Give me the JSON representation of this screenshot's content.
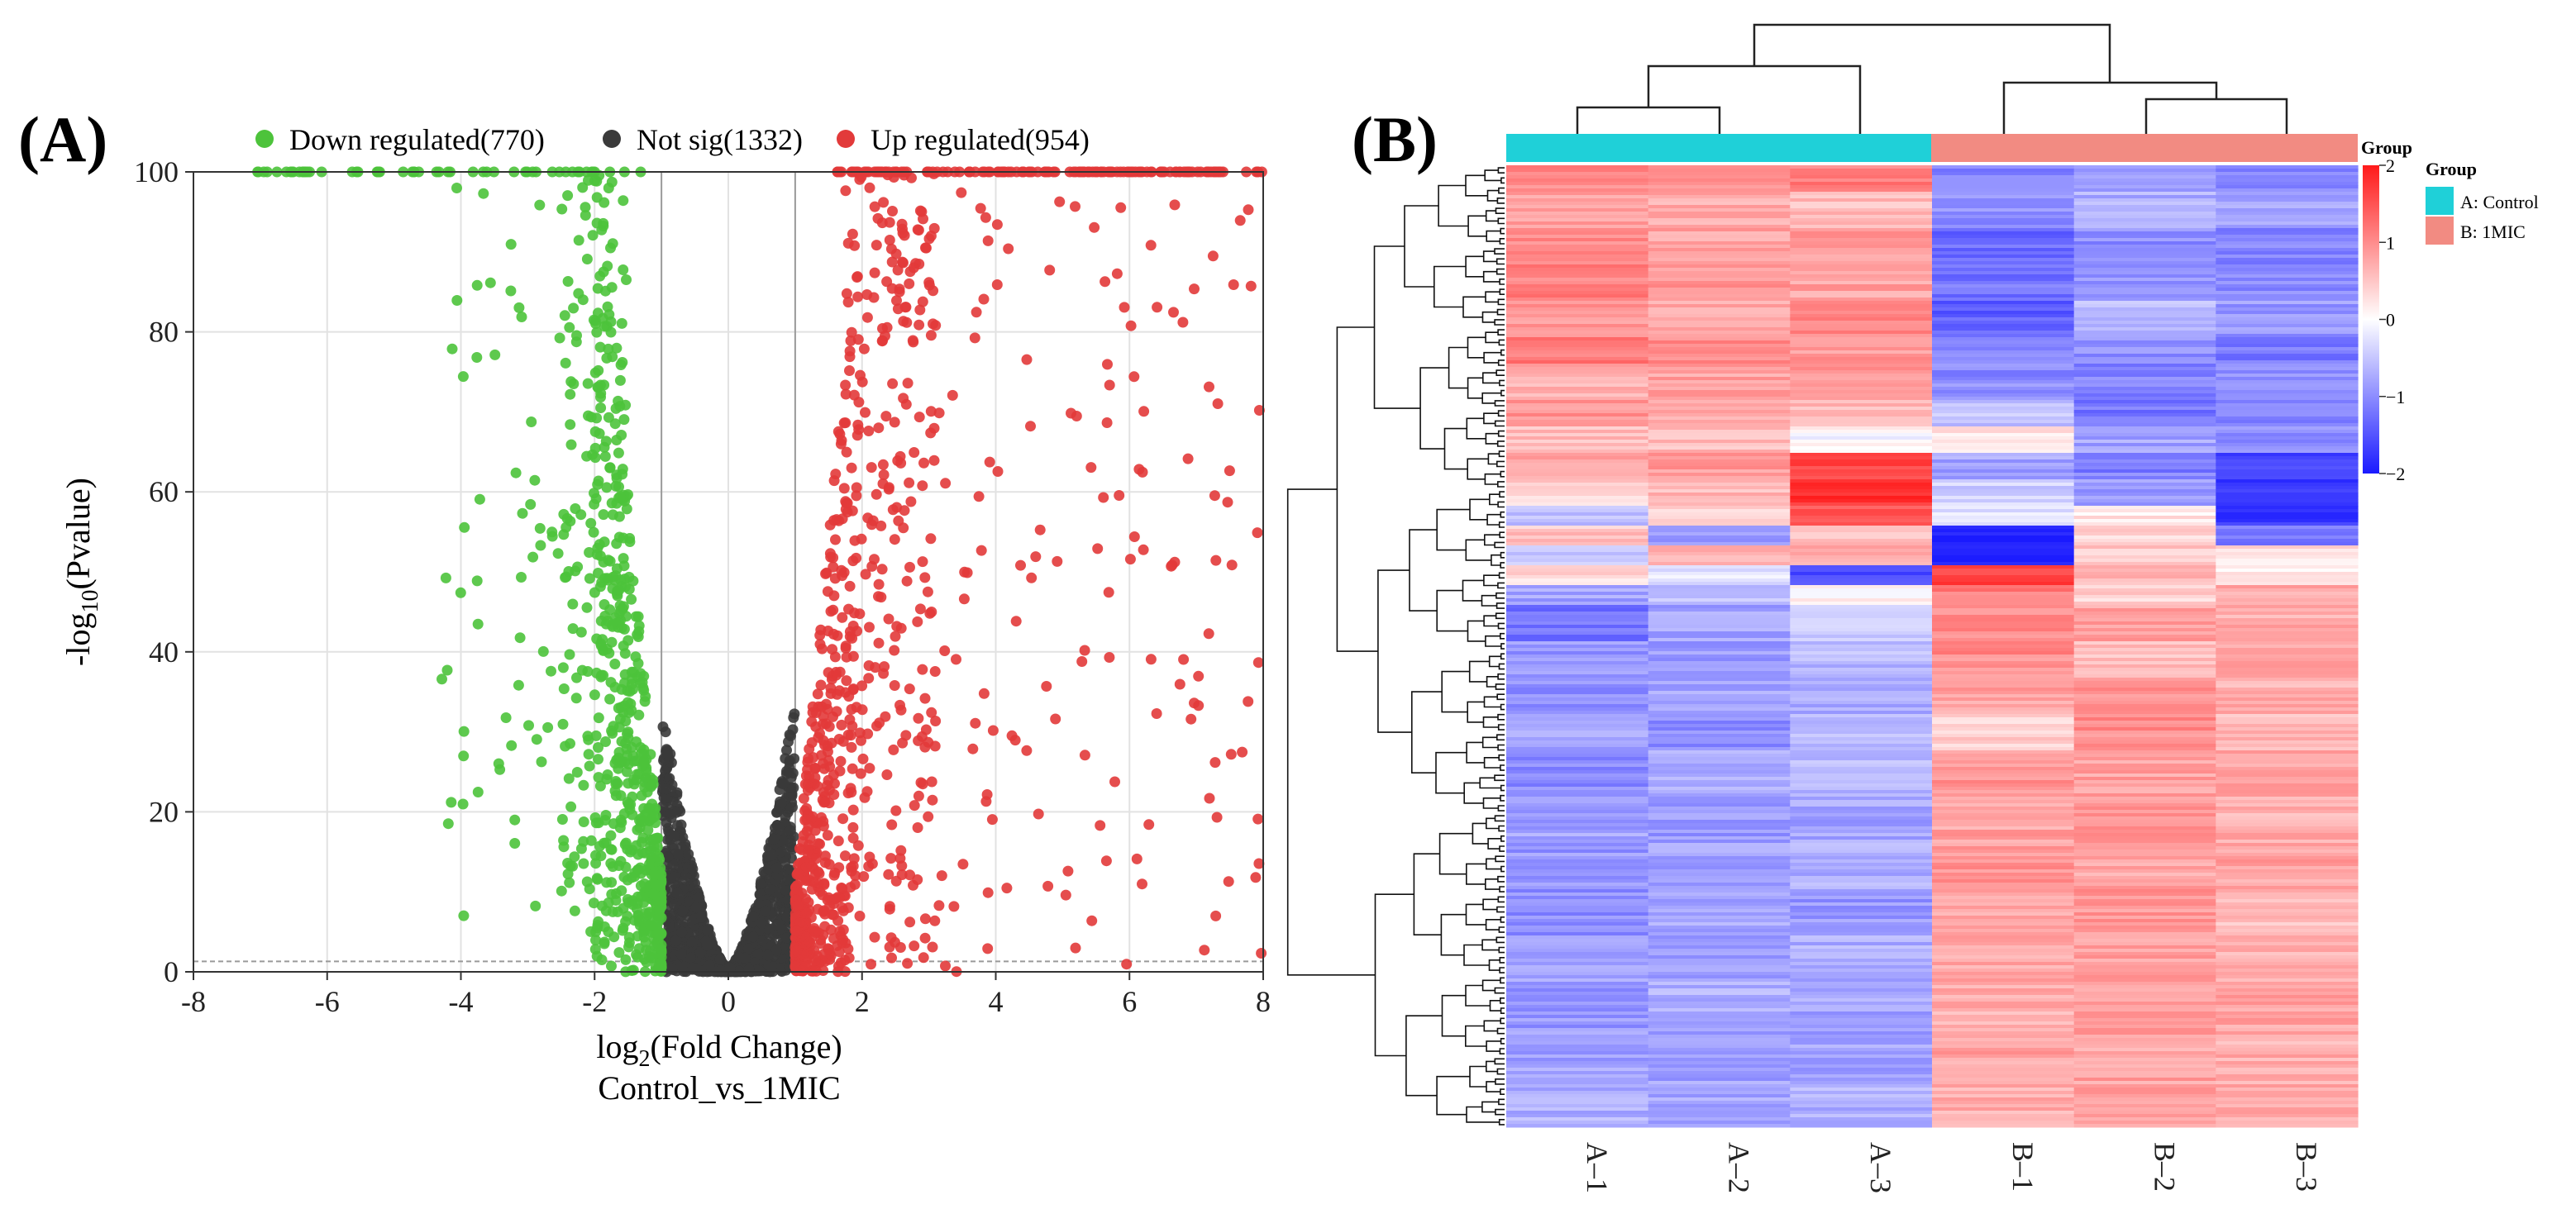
{
  "panel_a_label": "(A)",
  "panel_b_label": "(B)",
  "chart_data": [
    {
      "type": "scatter",
      "subtype": "volcano",
      "title": "",
      "xlabel_prefix": "log",
      "xlabel_sub": "2",
      "xlabel_suffix": "(Fold Change)",
      "xlabel2": "Control_vs_1MIC",
      "ylabel_prefix": "-log",
      "ylabel_sub": "10",
      "ylabel_suffix": "(Pvalue)",
      "xlim": [
        -8,
        8
      ],
      "ylim": [
        0,
        100
      ],
      "xticks": [
        "-8",
        "-6",
        "-4",
        "-2",
        "0",
        "2",
        "4",
        "6",
        "8"
      ],
      "yticks": [
        "0",
        "20",
        "40",
        "60",
        "80",
        "100"
      ],
      "grid": true,
      "fc_threshold_lines": [
        -1,
        1
      ],
      "p_threshold_line": 1.3,
      "legend_position": "top",
      "series": [
        {
          "name": "Down regulated(770)",
          "count": 770,
          "color": "#4dc33b",
          "x_range": [
            -7.2,
            -1.0
          ],
          "y_range": [
            0,
            100
          ]
        },
        {
          "name": "Not sig(1332)",
          "count": 1332,
          "color": "#3a3a3a",
          "x_range": [
            -1.0,
            1.0
          ],
          "y_range": [
            0,
            35
          ]
        },
        {
          "name": "Up regulated(954)",
          "count": 954,
          "color": "#e23a3a",
          "x_range": [
            1.0,
            8.0
          ],
          "y_range": [
            0,
            100
          ]
        }
      ]
    },
    {
      "type": "heatmap",
      "title": "",
      "columns": [
        "A–1",
        "A–2",
        "A–3",
        "B–1",
        "B–2",
        "B–3"
      ],
      "column_groups": [
        "A: Control",
        "A: Control",
        "A: Control",
        "B: 1MIC",
        "B: 1MIC",
        "B: 1MIC"
      ],
      "group_annotation_title": "Group",
      "groups": [
        {
          "name": "A: Control",
          "color": "#1fd0d8"
        },
        {
          "name": "B: 1MIC",
          "color": "#f28b82"
        }
      ],
      "color_scale": {
        "min": -2,
        "max": 2,
        "ticks": [
          "2",
          "1",
          "0",
          "−1",
          "−2"
        ],
        "low_color": "#1a1aff",
        "mid_color": "#ffffff",
        "high_color": "#ff1a1a"
      },
      "row_profile_segments": [
        {
          "span": 0.03,
          "values": [
            1.0,
            0.9,
            1.1,
            -1.1,
            -0.8,
            -1.0
          ]
        },
        {
          "span": 0.04,
          "values": [
            0.8,
            0.7,
            0.6,
            -1.0,
            -0.7,
            -0.8
          ]
        },
        {
          "span": 0.04,
          "values": [
            1.0,
            0.8,
            0.9,
            -1.3,
            -1.0,
            -1.1
          ]
        },
        {
          "span": 0.04,
          "values": [
            1.1,
            0.9,
            0.8,
            -1.2,
            -0.9,
            -1.0
          ]
        },
        {
          "span": 0.04,
          "values": [
            0.9,
            0.8,
            1.0,
            -1.4,
            -0.6,
            -0.9
          ]
        },
        {
          "span": 0.03,
          "values": [
            1.2,
            1.0,
            0.9,
            -1.1,
            -1.0,
            -1.2
          ]
        },
        {
          "span": 0.04,
          "values": [
            0.7,
            0.8,
            0.9,
            -1.0,
            -1.1,
            -0.9
          ]
        },
        {
          "span": 0.03,
          "values": [
            0.9,
            0.7,
            0.6,
            -0.5,
            -1.2,
            -1.1
          ]
        },
        {
          "span": 0.03,
          "values": [
            0.6,
            0.6,
            0.0,
            0.2,
            -0.8,
            -1.0
          ]
        },
        {
          "span": 0.03,
          "values": [
            0.8,
            0.9,
            1.6,
            -0.8,
            -1.1,
            -1.6
          ]
        },
        {
          "span": 0.03,
          "values": [
            0.4,
            0.6,
            1.8,
            -0.4,
            -0.9,
            -1.8
          ]
        },
        {
          "span": 0.02,
          "values": [
            -0.6,
            0.3,
            1.4,
            -0.3,
            0.2,
            -1.7
          ]
        },
        {
          "span": 0.02,
          "values": [
            0.5,
            -0.8,
            0.6,
            -1.9,
            0.4,
            -1.2
          ]
        },
        {
          "span": 0.02,
          "values": [
            -0.4,
            0.6,
            0.8,
            -2.0,
            0.5,
            0.3
          ]
        },
        {
          "span": 0.02,
          "values": [
            0.3,
            -0.2,
            -1.6,
            1.6,
            0.6,
            0.2
          ]
        },
        {
          "span": 0.02,
          "values": [
            -0.8,
            -0.6,
            0.1,
            1.1,
            0.4,
            0.7
          ]
        },
        {
          "span": 0.04,
          "values": [
            -1.2,
            -0.8,
            -0.4,
            1.0,
            0.8,
            0.7
          ]
        },
        {
          "span": 0.04,
          "values": [
            -0.9,
            -0.9,
            -0.6,
            1.0,
            0.6,
            0.8
          ]
        },
        {
          "span": 0.04,
          "values": [
            -1.0,
            -0.8,
            -0.7,
            0.8,
            0.9,
            0.7
          ]
        },
        {
          "span": 0.04,
          "values": [
            -0.8,
            -1.0,
            -0.5,
            0.4,
            1.0,
            0.6
          ]
        },
        {
          "span": 0.05,
          "values": [
            -1.0,
            -0.7,
            -0.6,
            0.9,
            0.8,
            0.8
          ]
        },
        {
          "span": 0.05,
          "values": [
            -0.8,
            -0.9,
            -0.8,
            0.8,
            0.9,
            0.7
          ]
        },
        {
          "span": 0.05,
          "values": [
            -0.9,
            -0.8,
            -0.7,
            0.9,
            0.8,
            0.8
          ]
        },
        {
          "span": 0.05,
          "values": [
            -1.0,
            -0.8,
            -0.9,
            0.7,
            0.9,
            0.6
          ]
        },
        {
          "span": 0.05,
          "values": [
            -0.8,
            -0.9,
            -0.7,
            0.8,
            0.8,
            0.7
          ]
        },
        {
          "span": 0.05,
          "values": [
            -0.9,
            -0.7,
            -0.8,
            0.7,
            0.9,
            0.8
          ]
        },
        {
          "span": 0.05,
          "values": [
            -0.8,
            -0.8,
            -0.8,
            0.8,
            0.8,
            0.7
          ]
        },
        {
          "span": 0.04,
          "values": [
            -0.7,
            -0.8,
            -0.7,
            0.7,
            0.8,
            0.7
          ]
        }
      ]
    }
  ]
}
